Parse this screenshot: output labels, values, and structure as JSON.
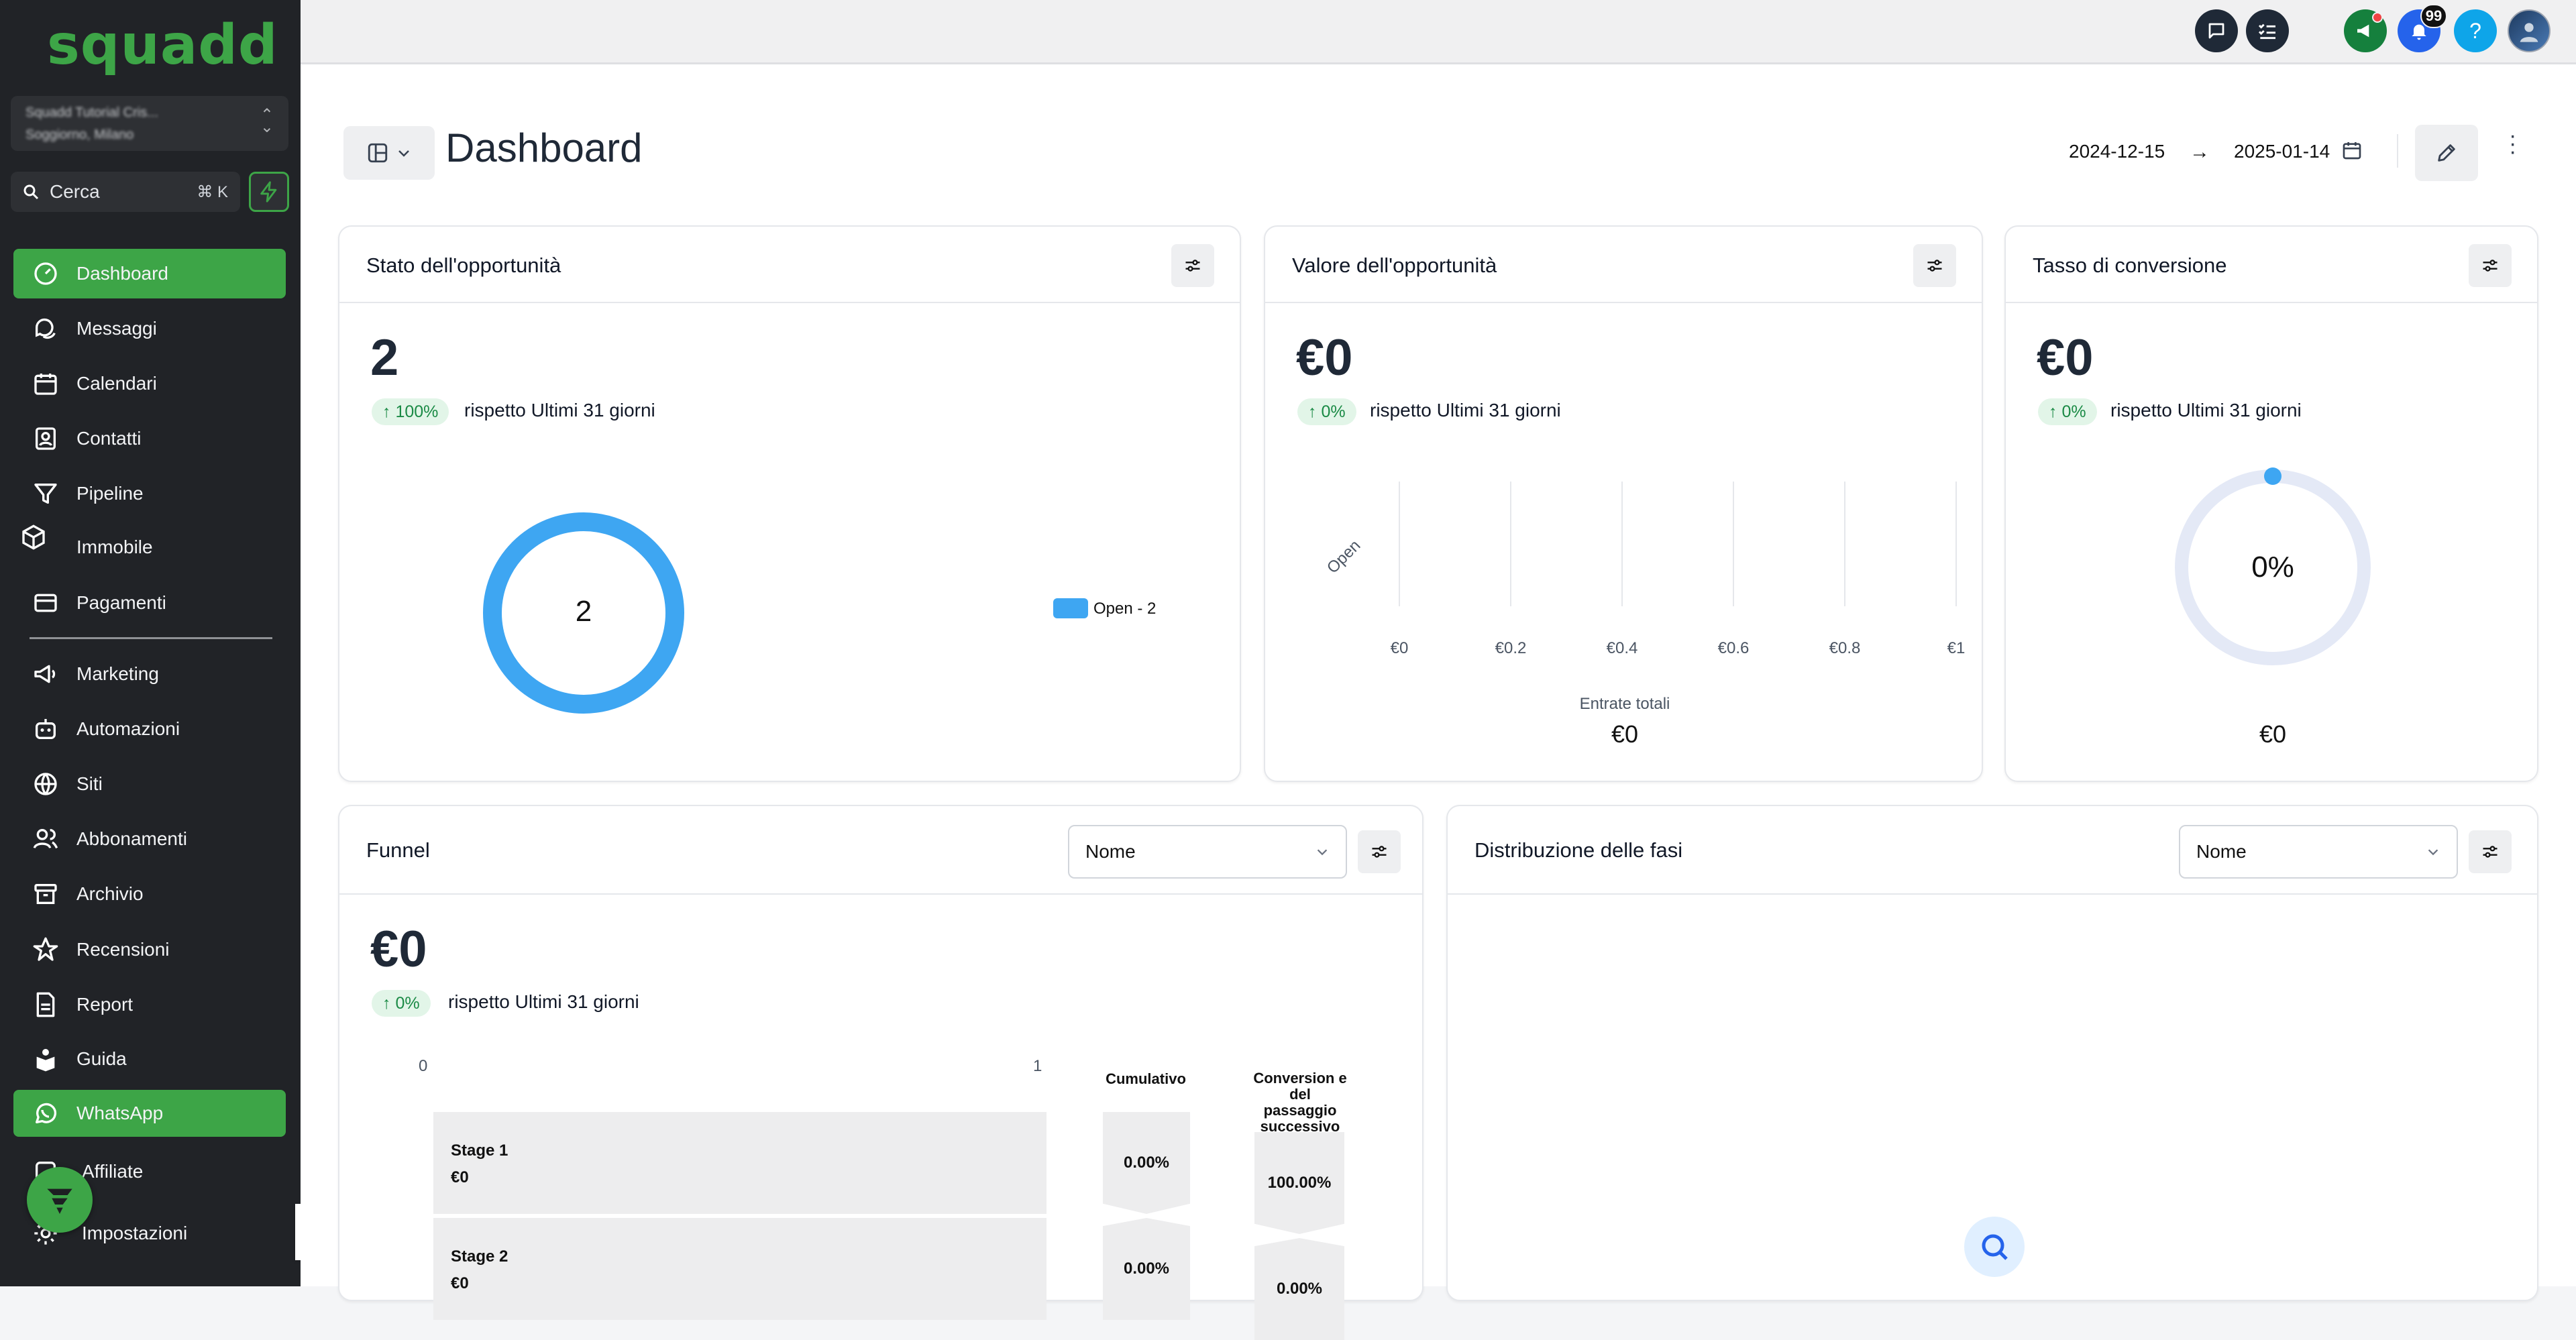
{
  "brand": {
    "logo": "squadd",
    "color": "#3da547"
  },
  "sidebar": {
    "account_name": "Squadd Tutorial Cris...",
    "account_location": "Soggiorno, Milano",
    "search_placeholder": "Cerca",
    "search_shortcut": "⌘ K",
    "items": [
      {
        "label": "Dashboard",
        "icon": "gauge-icon",
        "active": true
      },
      {
        "label": "Messaggi",
        "icon": "chat-icon"
      },
      {
        "label": "Calendari",
        "icon": "calendar-icon"
      },
      {
        "label": "Contatti",
        "icon": "contact-card-icon"
      },
      {
        "label": "Pipeline",
        "icon": "funnel-icon"
      },
      {
        "label": "Immobile",
        "icon": "cube-icon"
      },
      {
        "label": "Pagamenti",
        "icon": "credit-card-icon"
      },
      {
        "label": "Marketing",
        "icon": "megaphone-icon"
      },
      {
        "label": "Automazioni",
        "icon": "robot-icon"
      },
      {
        "label": "Siti",
        "icon": "globe-icon"
      },
      {
        "label": "Abbonamenti",
        "icon": "users-icon"
      },
      {
        "label": "Archivio",
        "icon": "archive-icon"
      },
      {
        "label": "Recensioni",
        "icon": "star-icon"
      },
      {
        "label": "Report",
        "icon": "report-icon"
      },
      {
        "label": "Guida",
        "icon": "guide-icon"
      },
      {
        "label": "WhatsApp",
        "icon": "whatsapp-icon",
        "active": true
      },
      {
        "label": "Affiliate",
        "icon": "affiliate-icon"
      },
      {
        "label": "Impostazioni",
        "icon": "gear-icon"
      }
    ]
  },
  "topbar": {
    "notifications_count": "99",
    "help_label": "?"
  },
  "page": {
    "title": "Dashboard",
    "date_from": "2024-12-15",
    "date_arrow": "→",
    "date_to": "2025-01-14"
  },
  "cards": {
    "stato": {
      "title": "Stato dell'opportunità",
      "value": "2",
      "change": "↑ 100%",
      "compare": "rispetto Ultimi 31 giorni",
      "donut_center": "2",
      "donut_color": "#3ea6f2",
      "legend": "Open - 2"
    },
    "valore": {
      "title": "Valore dell'opportunità",
      "value": "€0",
      "change": "↑ 0%",
      "compare": "rispetto Ultimi 31 giorni",
      "footer_label": "Entrate totali",
      "footer_value": "€0"
    },
    "tasso": {
      "title": "Tasso di conversione",
      "value": "€0",
      "change": "↑ 0%",
      "compare": "rispetto Ultimi 31 giorni",
      "gauge_center": "0%",
      "gauge_fraction": 0,
      "footer_value": "€0"
    },
    "funnel": {
      "title": "Funnel",
      "dropdown_value": "Nome",
      "value": "€0",
      "change": "↑ 0%",
      "compare": "rispetto Ultimi 31 giorni",
      "axis_min": "0",
      "axis_max": "1",
      "col_cumulative": "Cumulativo",
      "col_conversion": "Conversion e del passaggio successivo",
      "stages": [
        {
          "name": "Stage 1",
          "value": "€0",
          "cumulative": "0.00%",
          "conversion": "100.00%"
        },
        {
          "name": "Stage 2",
          "value": "€0",
          "cumulative": "0.00%",
          "conversion": "0.00%"
        }
      ]
    },
    "distribuzione": {
      "title": "Distribuzione delle fasi",
      "dropdown_value": "Nome"
    }
  },
  "chart_data": [
    {
      "type": "pie",
      "categories": [
        "Open"
      ],
      "values": [
        2
      ],
      "legend": [
        "Open - 2"
      ],
      "legend_position": "right"
    },
    {
      "type": "bar",
      "categories": [
        "Open"
      ],
      "values": [
        0
      ],
      "x_ticks": [
        "€0",
        "€0.2",
        "€0.4",
        "€0.6",
        "€0.8",
        "€1"
      ],
      "xlim": [
        0,
        1
      ],
      "grid": true
    }
  ]
}
